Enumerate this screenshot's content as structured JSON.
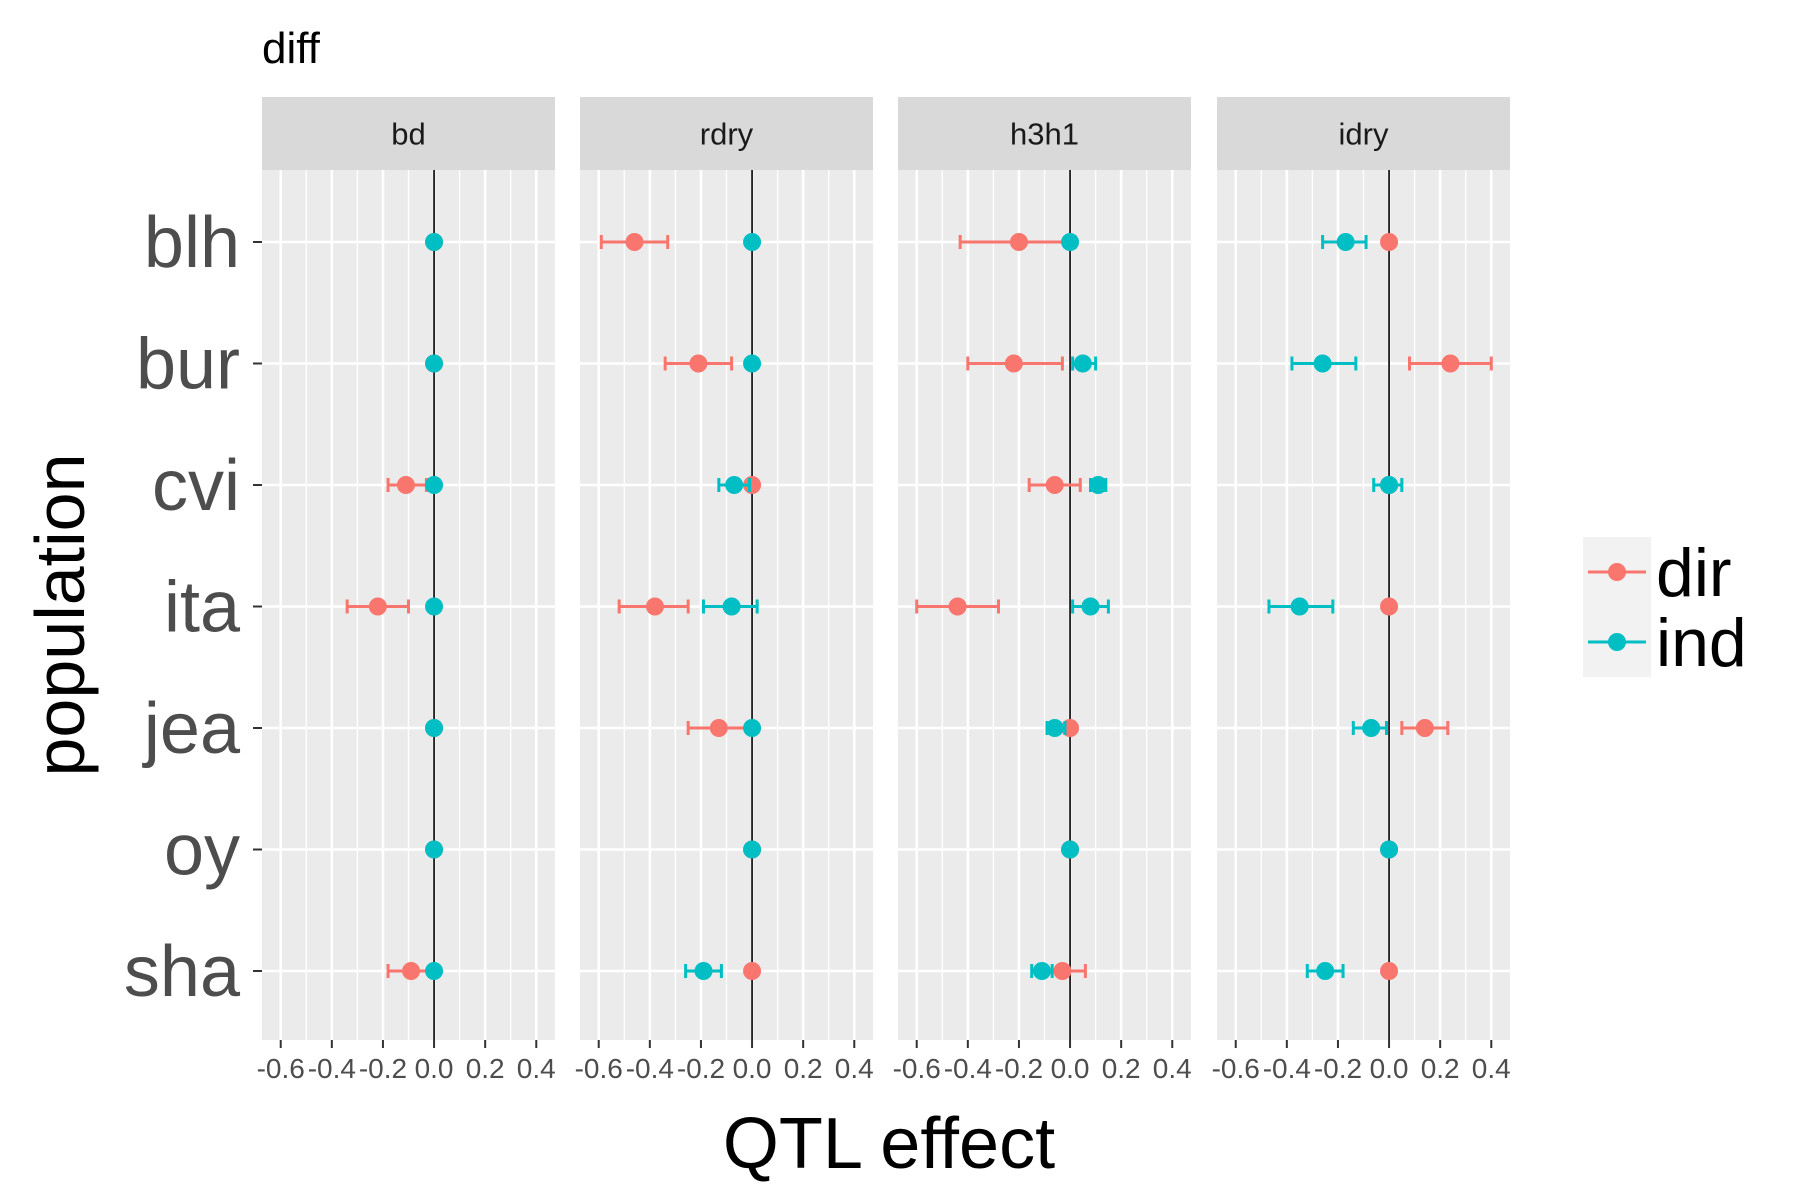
{
  "chart_data": {
    "type": "scatter",
    "title": "diff",
    "xlabel": "QTL effect",
    "ylabel": "population",
    "xlim": [
      -0.64,
      0.44
    ],
    "x_ticks": [
      -0.6,
      -0.4,
      -0.2,
      0.0,
      0.2,
      0.4
    ],
    "x_tick_labels": [
      "-0.6",
      "-0.4",
      "-0.2",
      "0.0",
      "0.2",
      "0.4"
    ],
    "categories": [
      "blh",
      "bur",
      "cvi",
      "ita",
      "jea",
      "oy",
      "sha"
    ],
    "grid": true,
    "reference_line_x": 0,
    "legend": {
      "placement": "right",
      "entries": [
        {
          "name": "dir",
          "color": "#F8766D"
        },
        {
          "name": "ind",
          "color": "#00BFC4"
        }
      ]
    },
    "colors": {
      "dir": "#F8766D",
      "ind": "#00BFC4",
      "panel_bg": "#EBEBEB",
      "strip_bg": "#D9D9D9",
      "grid": "#FFFFFF"
    },
    "panels": [
      {
        "name": "bd",
        "series": [
          {
            "name": "dir",
            "points": [
              {
                "pop": "blh",
                "x": 0.0
              },
              {
                "pop": "bur",
                "x": 0.0
              },
              {
                "pop": "cvi",
                "x": -0.11,
                "lo": -0.18,
                "hi": -0.03
              },
              {
                "pop": "ita",
                "x": -0.22,
                "lo": -0.34,
                "hi": -0.1
              },
              {
                "pop": "jea",
                "x": 0.0
              },
              {
                "pop": "oy",
                "x": 0.0
              },
              {
                "pop": "sha",
                "x": -0.09,
                "lo": -0.18,
                "hi": -0.01
              }
            ]
          },
          {
            "name": "ind",
            "points": [
              {
                "pop": "blh",
                "x": 0.0
              },
              {
                "pop": "bur",
                "x": 0.0
              },
              {
                "pop": "cvi",
                "x": 0.0
              },
              {
                "pop": "ita",
                "x": 0.0
              },
              {
                "pop": "jea",
                "x": 0.0
              },
              {
                "pop": "oy",
                "x": 0.0
              },
              {
                "pop": "sha",
                "x": 0.0
              }
            ]
          }
        ]
      },
      {
        "name": "rdry",
        "series": [
          {
            "name": "dir",
            "points": [
              {
                "pop": "blh",
                "x": -0.46,
                "lo": -0.59,
                "hi": -0.33
              },
              {
                "pop": "bur",
                "x": -0.21,
                "lo": -0.34,
                "hi": -0.08
              },
              {
                "pop": "cvi",
                "x": 0.0
              },
              {
                "pop": "ita",
                "x": -0.38,
                "lo": -0.52,
                "hi": -0.25
              },
              {
                "pop": "jea",
                "x": -0.13,
                "lo": -0.25,
                "hi": -0.01
              },
              {
                "pop": "oy",
                "x": 0.0
              },
              {
                "pop": "sha",
                "x": 0.0
              }
            ]
          },
          {
            "name": "ind",
            "points": [
              {
                "pop": "blh",
                "x": 0.0
              },
              {
                "pop": "bur",
                "x": 0.0
              },
              {
                "pop": "cvi",
                "x": -0.07,
                "lo": -0.13,
                "hi": -0.01
              },
              {
                "pop": "ita",
                "x": -0.08,
                "lo": -0.19,
                "hi": 0.02
              },
              {
                "pop": "jea",
                "x": 0.0
              },
              {
                "pop": "oy",
                "x": 0.0
              },
              {
                "pop": "sha",
                "x": -0.19,
                "lo": -0.26,
                "hi": -0.12
              }
            ]
          }
        ]
      },
      {
        "name": "h3h1",
        "series": [
          {
            "name": "dir",
            "points": [
              {
                "pop": "blh",
                "x": -0.2,
                "lo": -0.43,
                "hi": 0.02
              },
              {
                "pop": "bur",
                "x": -0.22,
                "lo": -0.4,
                "hi": -0.03
              },
              {
                "pop": "cvi",
                "x": -0.06,
                "lo": -0.16,
                "hi": 0.04
              },
              {
                "pop": "ita",
                "x": -0.44,
                "lo": -0.6,
                "hi": -0.28
              },
              {
                "pop": "jea",
                "x": 0.0
              },
              {
                "pop": "oy",
                "x": 0.0
              },
              {
                "pop": "sha",
                "x": -0.03,
                "lo": -0.12,
                "hi": 0.06
              }
            ]
          },
          {
            "name": "ind",
            "points": [
              {
                "pop": "blh",
                "x": 0.0
              },
              {
                "pop": "bur",
                "x": 0.05,
                "lo": 0.01,
                "hi": 0.1
              },
              {
                "pop": "cvi",
                "x": 0.11,
                "lo": 0.08,
                "hi": 0.14
              },
              {
                "pop": "ita",
                "x": 0.08,
                "lo": 0.01,
                "hi": 0.15
              },
              {
                "pop": "jea",
                "x": -0.06,
                "lo": -0.09,
                "hi": -0.02
              },
              {
                "pop": "oy",
                "x": 0.0
              },
              {
                "pop": "sha",
                "x": -0.11,
                "lo": -0.15,
                "hi": -0.07
              }
            ]
          }
        ]
      },
      {
        "name": "idry",
        "series": [
          {
            "name": "dir",
            "points": [
              {
                "pop": "blh",
                "x": 0.0
              },
              {
                "pop": "bur",
                "x": 0.24,
                "lo": 0.08,
                "hi": 0.4
              },
              {
                "pop": "cvi",
                "x": 0.0
              },
              {
                "pop": "ita",
                "x": 0.0
              },
              {
                "pop": "jea",
                "x": 0.14,
                "lo": 0.05,
                "hi": 0.23
              },
              {
                "pop": "oy",
                "x": 0.0
              },
              {
                "pop": "sha",
                "x": 0.0
              }
            ]
          },
          {
            "name": "ind",
            "points": [
              {
                "pop": "blh",
                "x": -0.17,
                "lo": -0.26,
                "hi": -0.09
              },
              {
                "pop": "bur",
                "x": -0.26,
                "lo": -0.38,
                "hi": -0.13
              },
              {
                "pop": "cvi",
                "x": 0.0,
                "lo": -0.06,
                "hi": 0.05
              },
              {
                "pop": "ita",
                "x": -0.35,
                "lo": -0.47,
                "hi": -0.22
              },
              {
                "pop": "jea",
                "x": -0.07,
                "lo": -0.14,
                "hi": -0.01
              },
              {
                "pop": "oy",
                "x": 0.0
              },
              {
                "pop": "sha",
                "x": -0.25,
                "lo": -0.32,
                "hi": -0.18
              }
            ]
          }
        ]
      }
    ]
  }
}
